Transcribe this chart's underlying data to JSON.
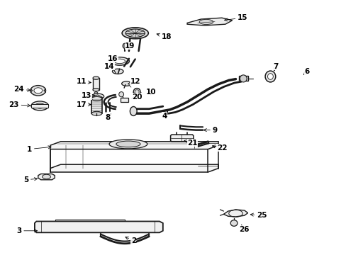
{
  "background_color": "#ffffff",
  "line_color": "#1a1a1a",
  "text_color": "#000000",
  "figsize": [
    4.89,
    3.6
  ],
  "dpi": 100,
  "part_labels": [
    [
      1,
      0.085,
      0.415,
      0.155,
      0.425
    ],
    [
      2,
      0.385,
      0.055,
      0.355,
      0.075
    ],
    [
      3,
      0.055,
      0.095,
      0.115,
      0.095
    ],
    [
      4,
      0.475,
      0.545,
      0.485,
      0.565
    ],
    [
      5,
      0.075,
      0.295,
      0.115,
      0.3
    ],
    [
      6,
      0.885,
      0.72,
      0.875,
      0.705
    ],
    [
      7,
      0.795,
      0.74,
      0.79,
      0.72
    ],
    [
      8,
      0.31,
      0.54,
      0.32,
      0.555
    ],
    [
      9,
      0.62,
      0.49,
      0.58,
      0.49
    ],
    [
      10,
      0.435,
      0.64,
      0.435,
      0.625
    ],
    [
      11,
      0.235,
      0.68,
      0.27,
      0.675
    ],
    [
      12,
      0.39,
      0.68,
      0.368,
      0.67
    ],
    [
      13,
      0.25,
      0.625,
      0.28,
      0.625
    ],
    [
      14,
      0.315,
      0.74,
      0.33,
      0.73
    ],
    [
      15,
      0.7,
      0.93,
      0.64,
      0.92
    ],
    [
      16,
      0.325,
      0.77,
      0.34,
      0.76
    ],
    [
      17,
      0.235,
      0.59,
      0.27,
      0.59
    ],
    [
      18,
      0.48,
      0.855,
      0.445,
      0.87
    ],
    [
      19,
      0.375,
      0.82,
      0.368,
      0.81
    ],
    [
      20,
      0.395,
      0.62,
      0.378,
      0.612
    ],
    [
      21,
      0.555,
      0.44,
      0.53,
      0.45
    ],
    [
      22,
      0.64,
      0.42,
      0.605,
      0.43
    ],
    [
      23,
      0.04,
      0.59,
      0.095,
      0.585
    ],
    [
      24,
      0.055,
      0.65,
      0.095,
      0.645
    ],
    [
      25,
      0.755,
      0.155,
      0.715,
      0.16
    ],
    [
      26,
      0.705,
      0.1,
      0.695,
      0.12
    ]
  ]
}
